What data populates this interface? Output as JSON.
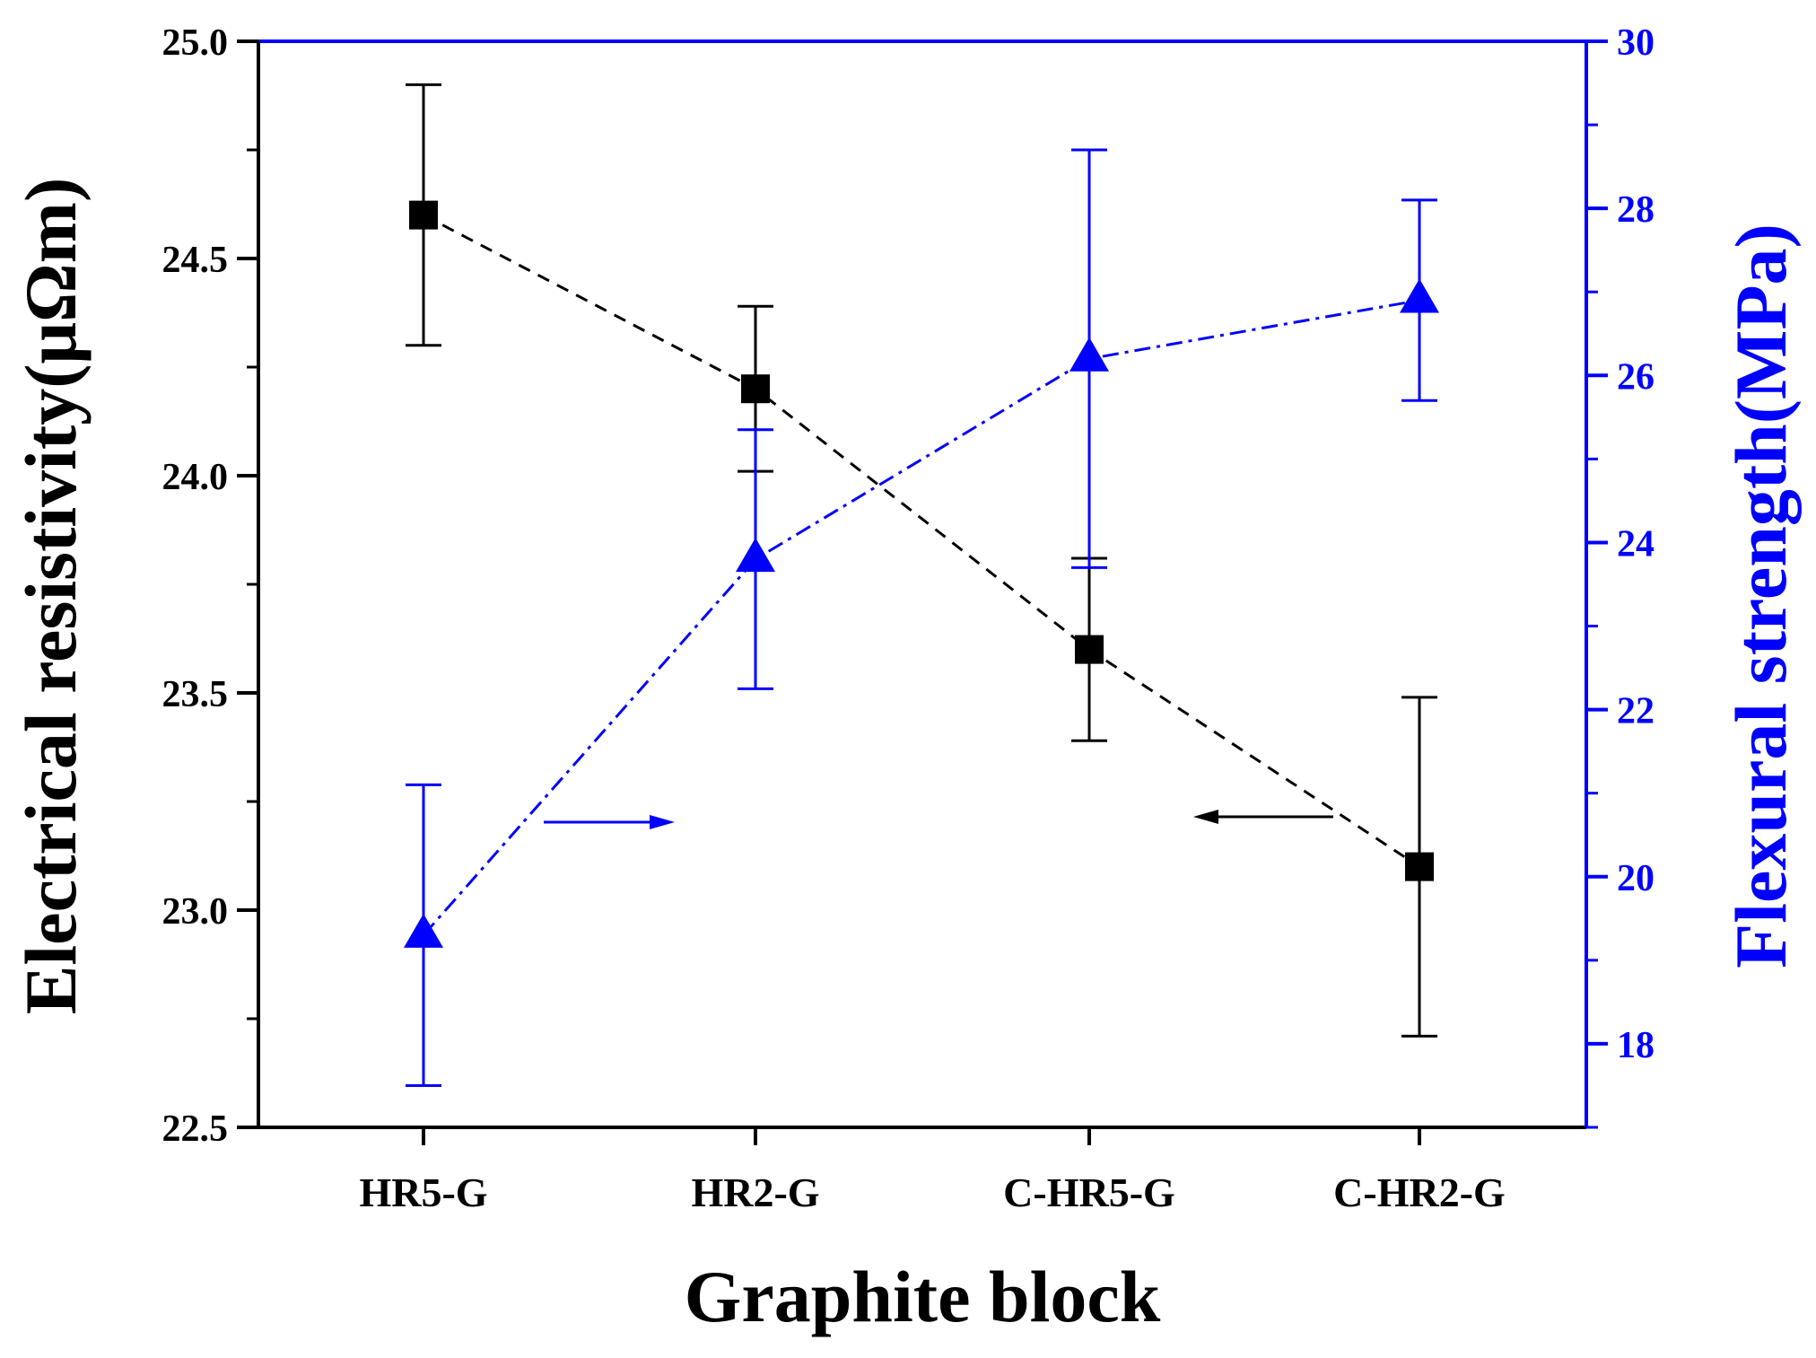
{
  "chart_data": {
    "type": "line",
    "xlabel": "Graphite block",
    "categories": [
      "HR5-G",
      "HR2-G",
      "C-HR5-G",
      "C-HR2-G"
    ],
    "left_axis": {
      "label": "Electrical resistivity(μΩm)",
      "range": [
        22.5,
        25.0
      ],
      "ticks": [
        "22.5",
        "23.0",
        "23.5",
        "24.0",
        "24.5",
        "25.0"
      ],
      "color": "#000000"
    },
    "right_axis": {
      "label": "Flexural strength(MPa)",
      "range": [
        17,
        30
      ],
      "ticks": [
        "18",
        "20",
        "22",
        "24",
        "26",
        "28",
        "30"
      ],
      "color": "#0000ff"
    },
    "series": [
      {
        "axis": "left",
        "marker": "square",
        "line_style": "dashed",
        "color": "#000000",
        "values": [
          24.6,
          24.2,
          23.6,
          23.1
        ],
        "errors": [
          0.3,
          0.19,
          0.21,
          0.39
        ]
      },
      {
        "axis": "right",
        "marker": "triangle",
        "line_style": "dash-dot",
        "color": "#0000ff",
        "values": [
          19.3,
          23.8,
          26.2,
          26.9
        ],
        "errors": [
          1.8,
          1.55,
          2.5,
          1.2
        ]
      }
    ],
    "annotations": [
      {
        "type": "arrow",
        "direction": "right",
        "color": "#0000ff",
        "points_to": "right_axis"
      },
      {
        "type": "arrow",
        "direction": "left",
        "color": "#000000",
        "points_to": "left_axis"
      }
    ],
    "grid": false,
    "legend": "none"
  }
}
